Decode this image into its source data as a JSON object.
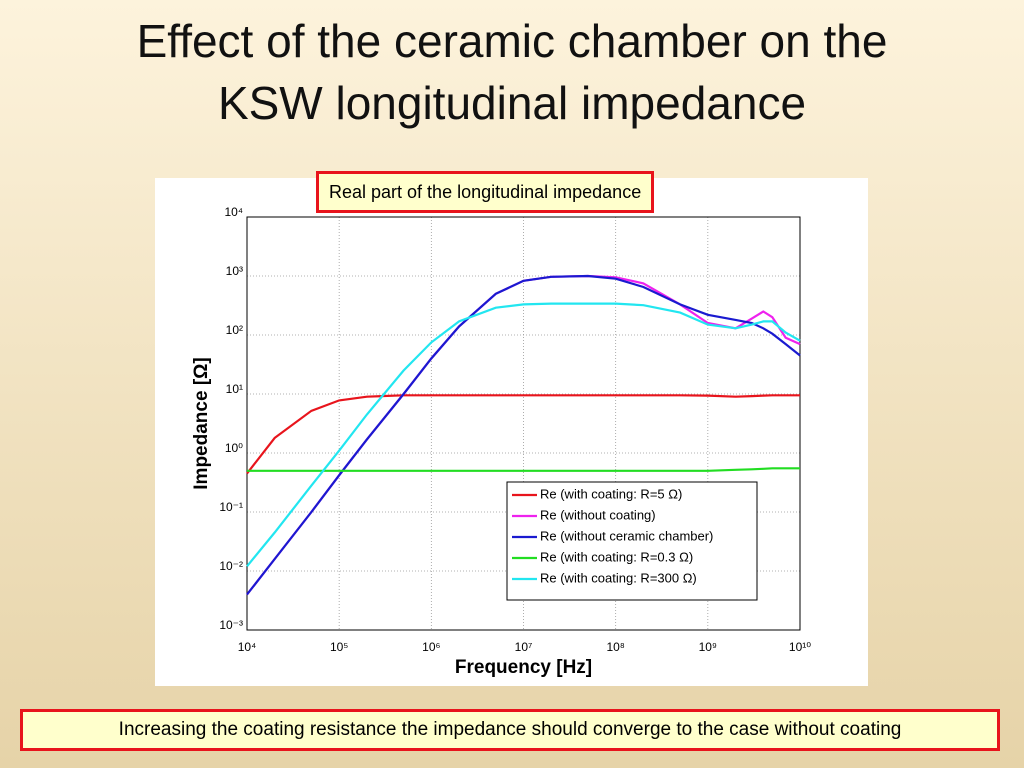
{
  "slide": {
    "title": [
      "Effect of the ceramic chamber on the",
      "KSW longitudinal impedance"
    ],
    "footer_note": "Increasing the coating resistance the impedance should converge to the case without coating"
  },
  "chart_data": {
    "type": "line",
    "title": "Real part of the longitudinal impedance",
    "x_label": "Frequency [Hz]",
    "y_label": "Impedance [Ω]",
    "x_scale": "log",
    "y_scale": "log",
    "grid": true,
    "legend": "lower right",
    "x": [
      10000,
      20000,
      50000,
      100000,
      200000,
      500000,
      1000000,
      2000000,
      5000000,
      10000000,
      20000000,
      50000000,
      100000000,
      200000000,
      500000000,
      1000000000,
      2000000000,
      3000000000,
      4000000000,
      5000000000,
      7000000000,
      10000000000
    ],
    "xlim": [
      10000,
      10000000000
    ],
    "xticks": [
      {
        "value": 10000,
        "label": "10⁴"
      },
      {
        "value": 100000,
        "label": "10⁵"
      },
      {
        "value": 1000000,
        "label": "10⁶"
      },
      {
        "value": 10000000,
        "label": "10⁷"
      },
      {
        "value": 100000000,
        "label": "10⁸"
      },
      {
        "value": 1000000000,
        "label": "10⁹"
      },
      {
        "value": 10000000000,
        "label": "10¹⁰"
      }
    ],
    "ylim": [
      0.001,
      10000
    ],
    "yticks": [
      {
        "value": 0.001,
        "label": "10⁻³"
      },
      {
        "value": 0.01,
        "label": "10⁻²"
      },
      {
        "value": 0.1,
        "label": "10⁻¹"
      },
      {
        "value": 1,
        "label": "10⁰"
      },
      {
        "value": 10,
        "label": "10¹"
      },
      {
        "value": 100,
        "label": "10²"
      },
      {
        "value": 1000,
        "label": "10³"
      },
      {
        "value": 10000,
        "label": "10⁴"
      }
    ],
    "series": [
      {
        "name": "Re (with coating: R=5 Ω)",
        "color": "#e8141c",
        "values": [
          0.45,
          1.8,
          5.2,
          7.8,
          9.0,
          9.5,
          9.5,
          9.5,
          9.5,
          9.5,
          9.5,
          9.5,
          9.5,
          9.5,
          9.5,
          9.4,
          9.0,
          9.2,
          9.4,
          9.5,
          9.5,
          9.5
        ]
      },
      {
        "name": "Re (without coating)",
        "color": "#ee22ee",
        "values": [
          0.004,
          0.016,
          0.1,
          0.42,
          1.7,
          10,
          40,
          140,
          500,
          830,
          970,
          1000,
          950,
          750,
          330,
          160,
          130,
          190,
          250,
          200,
          90,
          70
        ]
      },
      {
        "name": "Re (without ceramic chamber)",
        "color": "#1a1ad0",
        "values": [
          0.004,
          0.016,
          0.1,
          0.42,
          1.7,
          10,
          40,
          140,
          500,
          830,
          970,
          1000,
          900,
          650,
          330,
          220,
          180,
          160,
          130,
          105,
          70,
          45
        ]
      },
      {
        "name": "Re (with coating: R=0.3 Ω)",
        "color": "#22dd22",
        "values": [
          0.5,
          0.5,
          0.5,
          0.5,
          0.5,
          0.5,
          0.5,
          0.5,
          0.5,
          0.5,
          0.5,
          0.5,
          0.5,
          0.5,
          0.5,
          0.5,
          0.52,
          0.53,
          0.54,
          0.55,
          0.55,
          0.55
        ]
      },
      {
        "name": "Re (with coating: R=300 Ω)",
        "color": "#22e6f0",
        "values": [
          0.012,
          0.045,
          0.28,
          1.1,
          4.5,
          25,
          75,
          170,
          290,
          330,
          340,
          340,
          340,
          320,
          240,
          150,
          130,
          150,
          170,
          170,
          110,
          80
        ]
      }
    ]
  }
}
